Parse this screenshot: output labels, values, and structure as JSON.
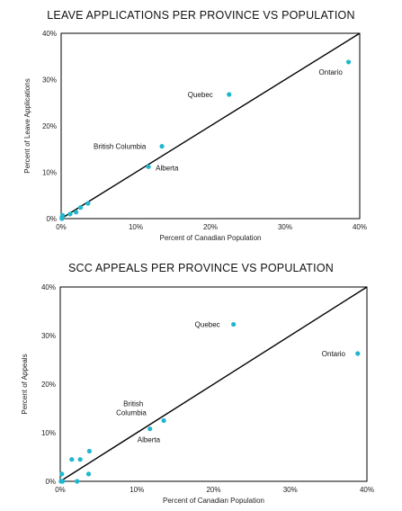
{
  "chart_data": [
    {
      "type": "scatter",
      "title": "LEAVE APPLICATIONS PER PROVINCE VS POPULATION",
      "xlabel": "Percent of Canadian Population",
      "ylabel": "Percent of Leave Applications",
      "xlim": [
        0,
        40
      ],
      "ylim": [
        0,
        40
      ],
      "x_ticks": [
        "0%",
        "10%",
        "20%",
        "30%",
        "40%"
      ],
      "y_ticks": [
        "0%",
        "10%",
        "20%",
        "30%",
        "40%"
      ],
      "reference_line": "y = x",
      "color": "#1fb7cf",
      "points": [
        {
          "label": "Ontario",
          "x": 38.5,
          "y": 33.8
        },
        {
          "label": "Quebec",
          "x": 22.5,
          "y": 26.8
        },
        {
          "label": "British Columbia",
          "x": 13.5,
          "y": 15.6
        },
        {
          "label": "Alberta",
          "x": 11.7,
          "y": 11.2
        },
        {
          "label": "",
          "x": 3.6,
          "y": 3.3
        },
        {
          "label": "",
          "x": 2.6,
          "y": 2.4
        },
        {
          "label": "",
          "x": 2.0,
          "y": 1.4
        },
        {
          "label": "",
          "x": 1.2,
          "y": 1.0
        },
        {
          "label": "",
          "x": 0.2,
          "y": 0.7
        },
        {
          "label": "",
          "x": 0.1,
          "y": 0.3
        },
        {
          "label": "",
          "x": 0.1,
          "y": 0.0
        }
      ]
    },
    {
      "type": "scatter",
      "title": "SCC APPEALS PER PROVINCE VS POPULATION",
      "xlabel": "Percent of Canadian Population",
      "ylabel": "Percent of Appeals",
      "xlim": [
        0,
        40
      ],
      "ylim": [
        0,
        40
      ],
      "x_ticks": [
        "0%",
        "10%",
        "20%",
        "30%",
        "40%"
      ],
      "y_ticks": [
        "0%",
        "10%",
        "20%",
        "30%",
        "40%"
      ],
      "reference_line": "y = x",
      "color": "#1fb7cf",
      "points": [
        {
          "label": "Ontario",
          "x": 38.8,
          "y": 26.3
        },
        {
          "label": "Quebec",
          "x": 22.6,
          "y": 32.3
        },
        {
          "label": "British Columbia",
          "x": 13.5,
          "y": 12.5
        },
        {
          "label": "Alberta",
          "x": 11.7,
          "y": 10.8
        },
        {
          "label": "",
          "x": 3.8,
          "y": 6.2
        },
        {
          "label": "",
          "x": 2.6,
          "y": 4.5
        },
        {
          "label": "",
          "x": 1.5,
          "y": 4.5
        },
        {
          "label": "",
          "x": 3.7,
          "y": 1.5
        },
        {
          "label": "",
          "x": 2.2,
          "y": 0.0
        },
        {
          "label": "",
          "x": 0.2,
          "y": 1.5
        },
        {
          "label": "",
          "x": 0.3,
          "y": 0.0
        },
        {
          "label": "",
          "x": 0.1,
          "y": 0.0
        }
      ]
    }
  ]
}
